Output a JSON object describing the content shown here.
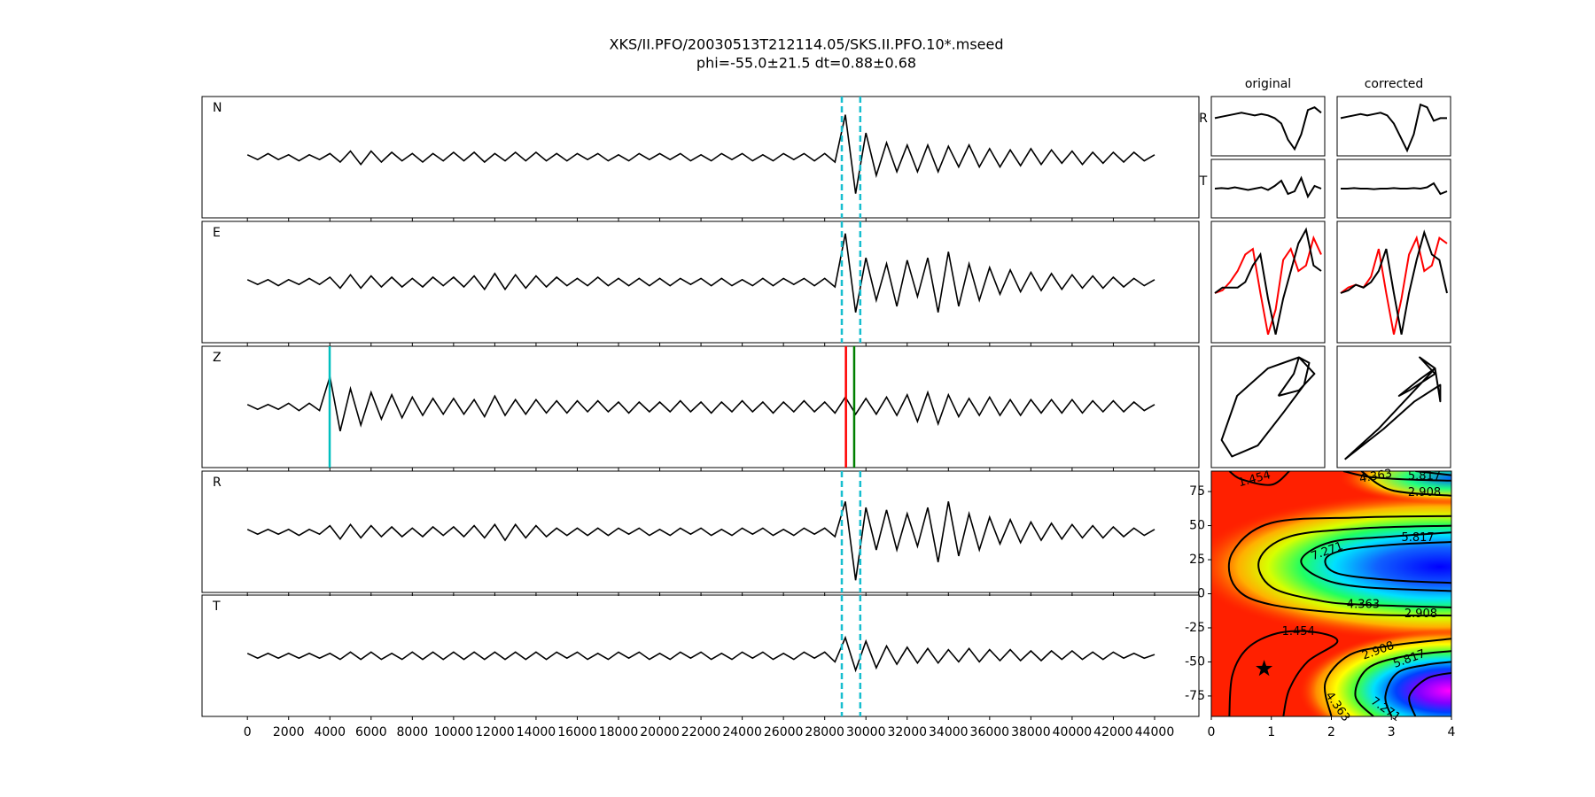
{
  "chart_data": {
    "type": "splitting",
    "title": "XKS/II.PFO/20030513T212114.05/SKS.II.PFO.10*.mseed",
    "subtitle": "phi=-55.0±21.5 dt=0.88±0.68",
    "x": [
      0,
      500,
      1000,
      1500,
      2000,
      2500,
      3000,
      3500,
      4000,
      4500,
      5000,
      5500,
      6000,
      6500,
      7000,
      7500,
      8000,
      8500,
      9000,
      9500,
      10000,
      10500,
      11000,
      11500,
      12000,
      12500,
      13000,
      13500,
      14000,
      14500,
      15000,
      15500,
      16000,
      16500,
      17000,
      17500,
      18000,
      18500,
      19000,
      19500,
      20000,
      20500,
      21000,
      21500,
      22000,
      22500,
      23000,
      23500,
      24000,
      24500,
      25000,
      25500,
      26000,
      26500,
      27000,
      27500,
      28000,
      28500,
      29000,
      29500,
      30000,
      30500,
      31000,
      31500,
      32000,
      32500,
      33000,
      33500,
      34000,
      34500,
      35000,
      35500,
      36000,
      36500,
      37000,
      37500,
      38000,
      38500,
      39000,
      39500,
      40000,
      40500,
      41000,
      41500,
      42000,
      42500,
      43000,
      43500,
      44000
    ],
    "xlim": [
      -2200,
      46150
    ],
    "xticks": [
      0,
      2000,
      4000,
      6000,
      8000,
      10000,
      12000,
      14000,
      16000,
      18000,
      20000,
      22000,
      24000,
      26000,
      28000,
      30000,
      32000,
      34000,
      36000,
      38000,
      40000,
      42000,
      44000
    ],
    "trace_ylim": [
      -0.5,
      0.5
    ],
    "traces": [
      {
        "name": "N",
        "color": "#000000",
        "values": [
          0.02,
          -0.02,
          0.03,
          -0.02,
          0.02,
          -0.03,
          0.02,
          -0.02,
          0.03,
          -0.04,
          0.05,
          -0.06,
          0.05,
          -0.04,
          0.04,
          -0.03,
          0.03,
          -0.04,
          0.03,
          -0.03,
          0.04,
          -0.03,
          0.04,
          -0.04,
          0.03,
          -0.03,
          0.04,
          -0.03,
          0.04,
          -0.03,
          0.03,
          -0.03,
          0.03,
          -0.02,
          0.03,
          -0.03,
          0.02,
          -0.03,
          0.03,
          -0.02,
          0.03,
          -0.02,
          0.03,
          -0.03,
          0.02,
          -0.03,
          0.03,
          -0.02,
          0.03,
          -0.03,
          0.02,
          -0.03,
          0.03,
          -0.02,
          0.03,
          -0.03,
          0.03,
          -0.04,
          0.35,
          -0.3,
          0.2,
          -0.15,
          0.12,
          -0.12,
          0.1,
          -0.12,
          0.1,
          -0.12,
          0.09,
          -0.08,
          0.1,
          -0.08,
          0.07,
          -0.08,
          0.06,
          -0.07,
          0.07,
          -0.06,
          0.06,
          -0.05,
          0.05,
          -0.06,
          0.04,
          -0.05,
          0.04,
          -0.04,
          0.04,
          -0.03,
          0.02
        ],
        "lines": [
          {
            "value": 28830,
            "color": "#17becf",
            "style": "dashed"
          },
          {
            "value": 29725,
            "color": "#17becf",
            "style": "dashed"
          }
        ]
      },
      {
        "name": "E",
        "color": "#000000",
        "values": [
          0.02,
          -0.02,
          0.02,
          -0.03,
          0.02,
          -0.02,
          0.03,
          -0.02,
          0.04,
          -0.05,
          0.06,
          -0.05,
          0.05,
          -0.04,
          0.04,
          -0.04,
          0.03,
          -0.04,
          0.04,
          -0.03,
          0.04,
          -0.04,
          0.05,
          -0.06,
          0.07,
          -0.06,
          0.06,
          -0.05,
          0.05,
          -0.04,
          0.04,
          -0.03,
          0.03,
          -0.03,
          0.04,
          -0.03,
          0.03,
          -0.03,
          0.03,
          -0.03,
          0.03,
          -0.03,
          0.03,
          -0.02,
          0.03,
          -0.03,
          0.03,
          -0.03,
          0.02,
          -0.03,
          0.03,
          -0.03,
          0.03,
          -0.02,
          0.03,
          -0.03,
          0.03,
          -0.04,
          0.4,
          -0.25,
          0.2,
          -0.15,
          0.15,
          -0.2,
          0.18,
          -0.12,
          0.2,
          -0.25,
          0.25,
          -0.2,
          0.15,
          -0.15,
          0.12,
          -0.1,
          0.1,
          -0.08,
          0.08,
          -0.07,
          0.07,
          -0.06,
          0.06,
          -0.05,
          0.05,
          -0.05,
          0.04,
          -0.04,
          0.03,
          -0.03,
          0.02
        ],
        "lines": [
          {
            "value": 28830,
            "color": "#17becf",
            "style": "dashed"
          },
          {
            "value": 29725,
            "color": "#17becf",
            "style": "dashed"
          }
        ]
      },
      {
        "name": "Z",
        "color": "#000000",
        "values": [
          0.02,
          -0.02,
          0.02,
          -0.02,
          0.03,
          -0.03,
          0.03,
          -0.03,
          0.25,
          -0.2,
          0.15,
          -0.15,
          0.12,
          -0.1,
          0.1,
          -0.09,
          0.08,
          -0.07,
          0.07,
          -0.06,
          0.07,
          -0.06,
          0.06,
          -0.08,
          0.09,
          -0.07,
          0.06,
          -0.06,
          0.06,
          -0.05,
          0.05,
          -0.05,
          0.05,
          -0.04,
          0.05,
          -0.04,
          0.04,
          -0.05,
          0.04,
          -0.04,
          0.04,
          -0.04,
          0.05,
          -0.04,
          0.04,
          -0.05,
          0.04,
          -0.04,
          0.05,
          -0.04,
          0.04,
          -0.05,
          0.04,
          -0.04,
          0.05,
          -0.04,
          0.04,
          -0.05,
          0.08,
          -0.06,
          0.07,
          -0.06,
          0.08,
          -0.07,
          0.1,
          -0.12,
          0.12,
          -0.14,
          0.1,
          -0.08,
          0.07,
          -0.07,
          0.08,
          -0.07,
          0.06,
          -0.07,
          0.06,
          -0.05,
          0.06,
          -0.05,
          0.06,
          -0.05,
          0.05,
          -0.04,
          0.05,
          -0.04,
          0.04,
          -0.03,
          0.02
        ],
        "lines": [
          {
            "value": 3990,
            "color": "#00bfbf",
            "style": "solid"
          },
          {
            "value": 29030,
            "color": "#ff0000",
            "style": "solid"
          },
          {
            "value": 29430,
            "color": "#008000",
            "style": "solid"
          }
        ]
      },
      {
        "name": "R",
        "color": "#000000",
        "values": [
          0.02,
          -0.02,
          0.02,
          -0.02,
          0.02,
          -0.03,
          0.02,
          -0.02,
          0.05,
          -0.06,
          0.06,
          -0.05,
          0.05,
          -0.04,
          0.04,
          -0.04,
          0.03,
          -0.04,
          0.04,
          -0.03,
          0.04,
          -0.04,
          0.05,
          -0.05,
          0.06,
          -0.07,
          0.06,
          -0.05,
          0.05,
          -0.04,
          0.03,
          -0.03,
          0.03,
          -0.03,
          0.03,
          -0.03,
          0.03,
          -0.02,
          0.03,
          -0.03,
          0.02,
          -0.03,
          0.03,
          -0.02,
          0.03,
          -0.03,
          0.02,
          -0.03,
          0.03,
          -0.02,
          0.03,
          -0.03,
          0.02,
          -0.03,
          0.03,
          -0.02,
          0.03,
          -0.04,
          0.25,
          -0.4,
          0.2,
          -0.15,
          0.18,
          -0.15,
          0.15,
          -0.12,
          0.2,
          -0.25,
          0.25,
          -0.2,
          0.15,
          -0.15,
          0.12,
          -0.1,
          0.1,
          -0.09,
          0.08,
          -0.07,
          0.07,
          -0.06,
          0.06,
          -0.05,
          0.05,
          -0.05,
          0.04,
          -0.04,
          0.03,
          -0.03,
          0.02
        ],
        "lines": [
          {
            "value": 28830,
            "color": "#17becf",
            "style": "dashed"
          },
          {
            "value": 29725,
            "color": "#17becf",
            "style": "dashed"
          }
        ]
      },
      {
        "name": "T",
        "color": "#000000",
        "values": [
          0.02,
          -0.02,
          0.02,
          -0.02,
          0.02,
          -0.02,
          0.02,
          -0.02,
          0.02,
          -0.03,
          0.03,
          -0.03,
          0.03,
          -0.03,
          0.02,
          -0.03,
          0.03,
          -0.03,
          0.03,
          -0.03,
          0.03,
          -0.03,
          0.03,
          -0.03,
          0.03,
          -0.03,
          0.03,
          -0.03,
          0.03,
          -0.03,
          0.03,
          -0.02,
          0.03,
          -0.03,
          0.02,
          -0.03,
          0.03,
          -0.02,
          0.03,
          -0.03,
          0.02,
          -0.03,
          0.03,
          -0.02,
          0.03,
          -0.03,
          0.02,
          -0.03,
          0.03,
          -0.02,
          0.03,
          -0.03,
          0.02,
          -0.03,
          0.03,
          -0.02,
          0.03,
          -0.05,
          0.15,
          -0.12,
          0.12,
          -0.1,
          0.08,
          -0.07,
          0.07,
          -0.06,
          0.06,
          -0.06,
          0.05,
          -0.05,
          0.06,
          -0.05,
          0.05,
          -0.04,
          0.05,
          -0.04,
          0.04,
          -0.04,
          0.04,
          -0.03,
          0.04,
          -0.03,
          0.03,
          -0.03,
          0.03,
          -0.02,
          0.02,
          -0.02,
          0.01
        ],
        "lines": [
          {
            "value": 28830,
            "color": "#17becf",
            "style": "dashed"
          },
          {
            "value": 29725,
            "color": "#17becf",
            "style": "dashed"
          }
        ]
      }
    ],
    "component_labels": [
      "R",
      "T"
    ],
    "panel_ylim": [
      -1.1,
      1.1
    ],
    "pm_lim": [
      -1.1,
      1.1
    ],
    "waveform_panels": [
      {
        "title": "original",
        "rows": [
          {
            "series": [
              {
                "color": "#000000",
                "values": [
                  0.3,
                  0.35,
                  0.4,
                  0.45,
                  0.5,
                  0.45,
                  0.4,
                  0.45,
                  0.4,
                  0.3,
                  0.1,
                  -0.5,
                  -0.85,
                  -0.3,
                  0.6,
                  0.7,
                  0.5
                ]
              }
            ]
          },
          {
            "series": [
              {
                "color": "#000000",
                "values": [
                  0,
                  0.02,
                  0,
                  0.05,
                  0,
                  -0.05,
                  0,
                  0.05,
                  -0.05,
                  0.1,
                  0.3,
                  -0.2,
                  -0.1,
                  0.4,
                  -0.3,
                  0.1,
                  0
                ]
              }
            ]
          },
          {
            "series": [
              {
                "color": "#ff0000",
                "values": [
                  -0.2,
                  -0.15,
                  0,
                  0.2,
                  0.5,
                  0.6,
                  -0.2,
                  -0.95,
                  -0.5,
                  0.4,
                  0.6,
                  0.2,
                  0.3,
                  0.8,
                  0.5
                ]
              },
              {
                "color": "#000000",
                "values": [
                  -0.2,
                  -0.1,
                  -0.1,
                  -0.1,
                  0,
                  0.3,
                  0.5,
                  -0.3,
                  -0.95,
                  -0.3,
                  0.2,
                  0.7,
                  0.95,
                  0.3,
                  0.2
                ]
              }
            ]
          }
        ],
        "particle_motion": {
          "color": "#000000",
          "x": [
            0.2,
            0.5,
            0.6,
            0.8,
            0.7,
            0.3,
            -0.2,
            -0.7,
            -0.9,
            -0.6,
            0,
            0.6,
            0.9,
            0.6,
            0.2
          ],
          "y": [
            0.2,
            0.6,
            0.9,
            0.8,
            0.4,
            -0.1,
            -0.7,
            -0.9,
            -0.6,
            0.2,
            0.7,
            0.9,
            0.6,
            0.3,
            0.2
          ]
        }
      },
      {
        "title": "corrected",
        "rows": [
          {
            "series": [
              {
                "color": "#000000",
                "values": [
                  0.3,
                  0.35,
                  0.4,
                  0.45,
                  0.4,
                  0.45,
                  0.5,
                  0.4,
                  0.1,
                  -0.4,
                  -0.9,
                  -0.3,
                  0.8,
                  0.7,
                  0.2,
                  0.3,
                  0.3
                ]
              }
            ]
          },
          {
            "series": [
              {
                "color": "#000000",
                "values": [
                  0,
                  0,
                  0.02,
                  0,
                  0,
                  -0.02,
                  0,
                  0,
                  0.02,
                  0,
                  0,
                  0.02,
                  0,
                  0.05,
                  0.2,
                  -0.2,
                  -0.1
                ]
              }
            ]
          },
          {
            "series": [
              {
                "color": "#ff0000",
                "values": [
                  -0.2,
                  -0.1,
                  -0.05,
                  -0.1,
                  0.1,
                  0.6,
                  -0.2,
                  -0.95,
                  -0.3,
                  0.5,
                  0.8,
                  0.2,
                  0.3,
                  0.8,
                  0.7
                ]
              },
              {
                "color": "#000000",
                "values": [
                  -0.2,
                  -0.15,
                  -0.05,
                  -0.1,
                  0,
                  0.2,
                  0.6,
                  -0.2,
                  -0.95,
                  -0.2,
                  0.4,
                  0.9,
                  0.5,
                  0.4,
                  -0.2
                ]
              }
            ]
          }
        ],
        "particle_motion": {
          "color": "#000000",
          "x": [
            -0.95,
            -0.3,
            0.4,
            0.8,
            0.5,
            0.1,
            0.3,
            0.8,
            0.5,
            0.8,
            0.9,
            0.9,
            0.4,
            -0.2,
            -0.95
          ],
          "y": [
            -0.95,
            -0.4,
            0.3,
            0.7,
            0.5,
            0.2,
            0.3,
            0.6,
            0.9,
            0.7,
            0.1,
            0.4,
            0.1,
            -0.4,
            -0.95
          ]
        }
      }
    ],
    "grid_search": {
      "xlim": [
        0,
        4
      ],
      "ylim": [
        -90,
        90
      ],
      "xticks": [
        0,
        1,
        2,
        3,
        4
      ],
      "yticks": [
        -75,
        -50,
        -25,
        0,
        25,
        50,
        75
      ],
      "levels": [
        1.454,
        2.908,
        4.363,
        5.817,
        7.271
      ],
      "best": {
        "dt": 0.88,
        "phi": -55.0
      }
    }
  }
}
